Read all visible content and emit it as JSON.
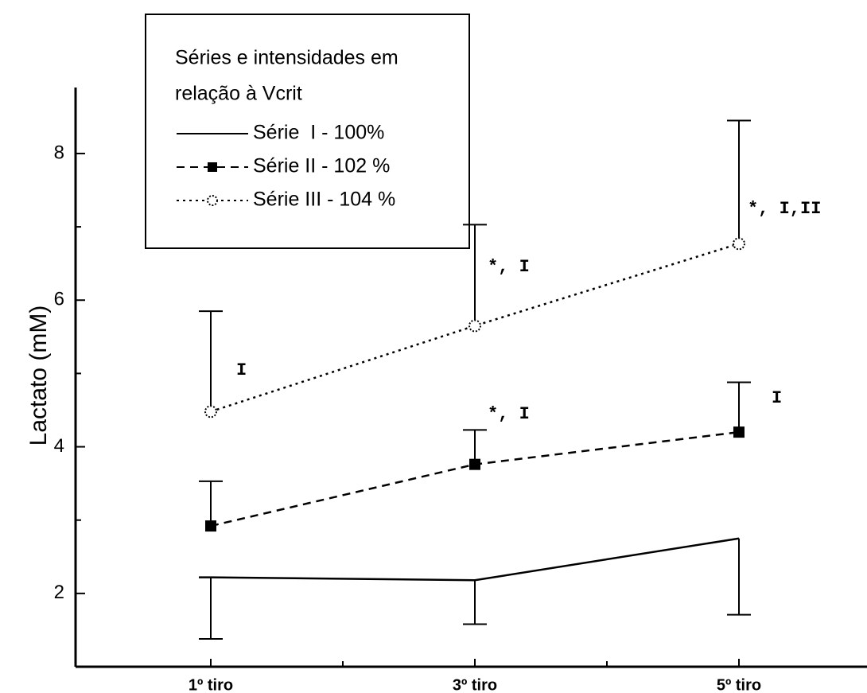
{
  "chart_data": {
    "type": "line",
    "y_label": "Lactato (mM)",
    "categories": [
      "1º tiro",
      "3º tiro",
      "5º tiro"
    ],
    "ylim": [
      1,
      8.9
    ],
    "yticks": [
      2,
      4,
      6,
      8
    ],
    "yminorticks": [
      3,
      5,
      7
    ],
    "legend_title": [
      "Séries e intensidades em",
      "relação à Vcrit"
    ],
    "legend_position": "upper left",
    "series": [
      {
        "name": "Série  I - 100%",
        "color": "#000000",
        "line_style": "solid",
        "marker": "none",
        "error_direction": "down",
        "values": [
          2.22,
          2.18,
          2.75
        ],
        "errors": [
          0.84,
          0.6,
          1.04
        ]
      },
      {
        "name": "Série II - 102 %",
        "color": "#000000",
        "line_style": "dashed",
        "marker": "square",
        "error_direction": "up",
        "values": [
          2.92,
          3.76,
          4.2
        ],
        "errors": [
          0.61,
          0.47,
          0.68
        ]
      },
      {
        "name": "Série III - 104 %",
        "color": "#000000",
        "line_style": "dotted",
        "marker": "star",
        "error_direction": "up",
        "values": [
          4.48,
          5.65,
          6.77
        ],
        "errors": [
          1.37,
          1.38,
          1.68
        ]
      }
    ],
    "annotations": [
      "I",
      "*, I",
      "*, I,II",
      "*, I",
      "I"
    ]
  }
}
